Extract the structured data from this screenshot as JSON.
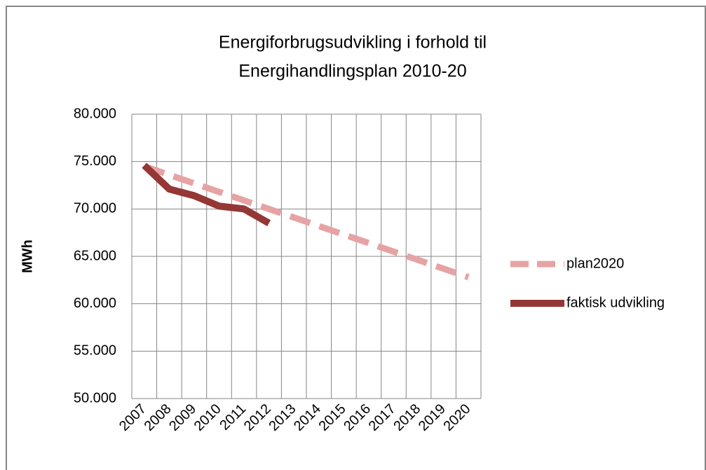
{
  "chart_data": {
    "type": "line",
    "title": "Energiforbrugsudvikling i forhold til",
    "subtitle": "Energihandlingsplan 2010-20",
    "y_label": "MWh",
    "categories": [
      "2007",
      "2008",
      "2009",
      "2010",
      "2011",
      "2012",
      "2013",
      "2014",
      "2015",
      "2016",
      "2017",
      "2018",
      "2019",
      "2020"
    ],
    "series": [
      {
        "name": "plan2020",
        "color": "#e6a3a3",
        "dashed": true,
        "values": [
          74500,
          73600,
          72700,
          71800,
          70900,
          70000,
          69100,
          68200,
          67300,
          66400,
          65500,
          64600,
          63700,
          62800
        ]
      },
      {
        "name": "faktisk udvikling",
        "color": "#953735",
        "dashed": false,
        "values": [
          74600,
          72100,
          71400,
          70300,
          70000,
          68500,
          null,
          null,
          null,
          null,
          null,
          null,
          null,
          null
        ]
      }
    ],
    "ylim": [
      50000,
      80000
    ],
    "yticks": [
      {
        "value": 50000,
        "label": "50.000"
      },
      {
        "value": 55000,
        "label": "55.000"
      },
      {
        "value": 60000,
        "label": "60.000"
      },
      {
        "value": 65000,
        "label": "65.000"
      },
      {
        "value": 70000,
        "label": "70.000"
      },
      {
        "value": 75000,
        "label": "75.000"
      },
      {
        "value": 80000,
        "label": "80.000"
      }
    ],
    "grid": true,
    "legend": "right"
  }
}
